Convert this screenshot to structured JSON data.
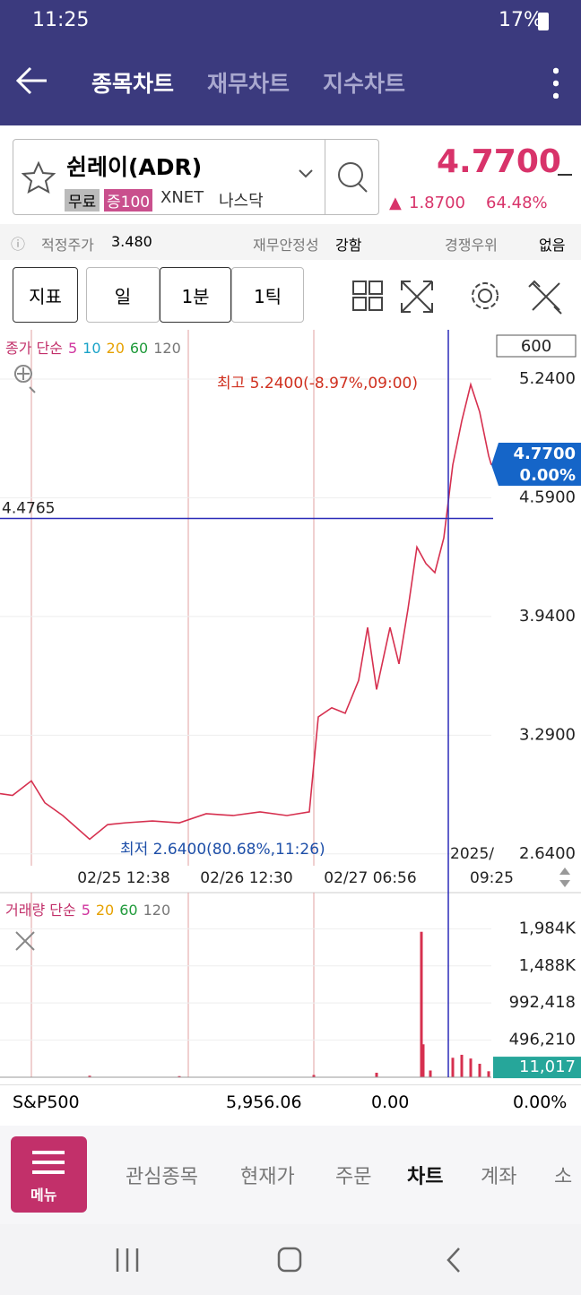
{
  "status_bar": {
    "time": "11:25",
    "battery": "17%"
  },
  "header": {
    "tabs": [
      "종목차트",
      "재무차트",
      "지수차트"
    ]
  },
  "stock": {
    "name": "쉰레이(ADR)",
    "tags": [
      "무료",
      "증100",
      "XNET",
      "나스닥"
    ],
    "price": "4.7700",
    "change": "1.8700",
    "change_pct": "64.48%"
  },
  "info": [
    [
      "적정주가",
      "3.480"
    ],
    [
      "재무안정성",
      "강함"
    ],
    [
      "경쟁우위",
      "없음"
    ]
  ],
  "toolbar": [
    "지표",
    "일",
    "1분",
    "1틱"
  ],
  "chart_data": [
    {
      "type": "line",
      "legend_title": "종가 단순",
      "ma_legend": [
        {
          "name": "5",
          "color": "#d0359f"
        },
        {
          "name": "10",
          "color": "#1aa3c8"
        },
        {
          "name": "20",
          "color": "#e6a100"
        },
        {
          "name": "60",
          "color": "#1f9a3a"
        },
        {
          "name": "120",
          "color": "#777777"
        }
      ],
      "x": [
        0,
        14,
        35,
        50,
        70,
        100,
        120,
        140,
        170,
        200,
        230,
        260,
        290,
        320,
        345,
        355,
        370,
        385,
        400,
        410,
        420,
        435,
        445,
        455,
        465,
        475,
        485,
        495,
        505,
        515,
        525,
        535,
        545,
        548
      ],
      "series": [
        {
          "name": "종가",
          "color": "#d6304f",
          "values": [
            2.97,
            2.96,
            3.04,
            2.92,
            2.85,
            2.72,
            2.8,
            2.81,
            2.82,
            2.81,
            2.86,
            2.85,
            2.87,
            2.85,
            2.87,
            3.39,
            3.44,
            3.41,
            3.59,
            3.88,
            3.54,
            3.88,
            3.68,
            3.98,
            4.32,
            4.23,
            4.18,
            4.37,
            4.77,
            5.01,
            5.21,
            5.06,
            4.82,
            4.77
          ]
        }
      ],
      "xlim": [
        0,
        548
      ],
      "xticks": [
        {
          "value": 138,
          "label": "02/25 12:38"
        },
        {
          "value": 275,
          "label": "02/26 12:30"
        },
        {
          "value": 413,
          "label": "02/27 06:56"
        }
      ],
      "ylim": [
        2.58,
        5.5
      ],
      "yticks": [
        {
          "value": 5.24,
          "label": "5.2400"
        },
        {
          "value": 4.59,
          "label": "4.5900"
        },
        {
          "value": 3.94,
          "label": "3.9400"
        },
        {
          "value": 3.29,
          "label": "3.2900"
        },
        {
          "value": 2.64,
          "label": "2.6400"
        }
      ],
      "period": 600,
      "high_label": "최고 5.2400(-8.97%,09:00)",
      "low_label": "최저 2.6400(80.68%,11:26)",
      "last": {
        "value": 4.77,
        "label": "4.7700"
      },
      "last_change": "0.00%",
      "crosshair": {
        "x": 500,
        "y": 4.4765,
        "date": "2025/",
        "time": "09:25"
      }
    },
    {
      "type": "bar",
      "legend_title": "거래량 단순",
      "ma_legend": [
        {
          "name": "5",
          "color": "#d0359f"
        },
        {
          "name": "20",
          "color": "#e6a100"
        },
        {
          "name": "60",
          "color": "#1f9a3a"
        },
        {
          "name": "120",
          "color": "#777777"
        }
      ],
      "x": [
        100,
        200,
        350,
        420,
        470,
        472,
        480,
        505,
        515,
        525,
        535,
        545
      ],
      "series": [
        {
          "name": "거래량",
          "color": "#d6304f",
          "values": [
            20000,
            15000,
            30000,
            60000,
            1944000,
            440000,
            90000,
            260000,
            300000,
            250000,
            180000,
            80000
          ]
        }
      ],
      "ylim": [
        0,
        2300000
      ],
      "yticks": [
        {
          "value": 1984000,
          "label": "1,984K"
        },
        {
          "value": 1488000,
          "label": "1,488K"
        },
        {
          "value": 992418,
          "label": "992,418"
        },
        {
          "value": 496210,
          "label": "496,210"
        }
      ],
      "last": {
        "value": 11017,
        "label": "11,017"
      }
    }
  ],
  "index_row": [
    "S&P500",
    "5,956.06",
    "0.00",
    "0.00%"
  ],
  "bottom_nav": {
    "menu": "메뉴",
    "items": [
      "관심종목",
      "현재가",
      "주문",
      "차트",
      "계좌",
      "소"
    ]
  }
}
